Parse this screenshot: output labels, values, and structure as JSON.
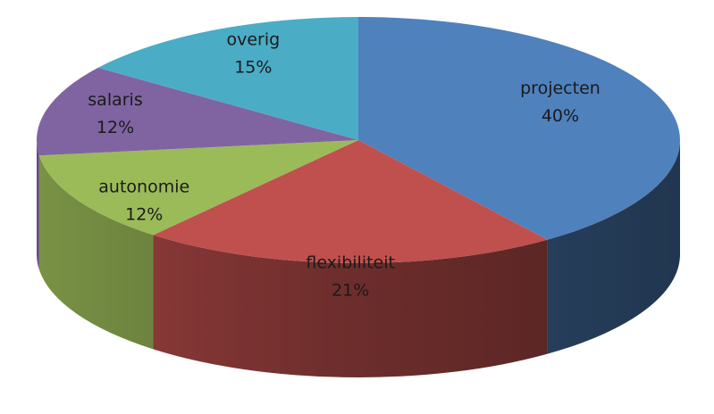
{
  "chart_data": {
    "type": "pie",
    "style": "3d",
    "slices": [
      {
        "label": "projecten",
        "value": 40,
        "percent_label": "40%",
        "color": "#4f81bd"
      },
      {
        "label": "flexibiliteit",
        "value": 21,
        "percent_label": "21%",
        "color": "#c0504d"
      },
      {
        "label": "autonomie",
        "value": 12,
        "percent_label": "12%",
        "color": "#9bbb59"
      },
      {
        "label": "salaris",
        "value": 12,
        "percent_label": "12%",
        "color": "#8064a2"
      },
      {
        "label": "overig",
        "value": 15,
        "percent_label": "15%",
        "color": "#4bacc6"
      }
    ],
    "legend": "none"
  }
}
